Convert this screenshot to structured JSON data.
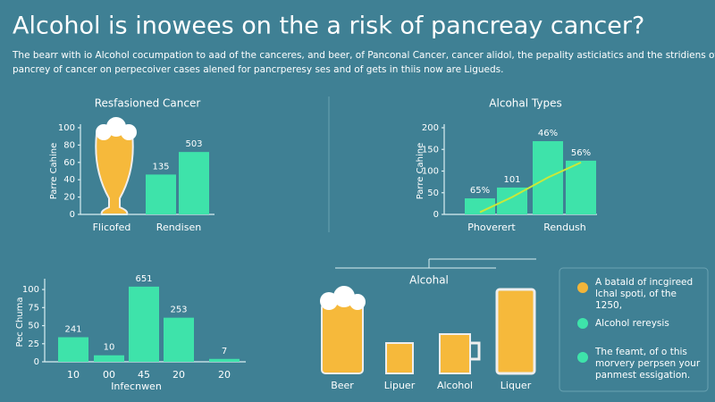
{
  "title": "Alcohol is inowees on the a risk of pancreay cancer?",
  "subtitle": [
    "The bearr with io Alcohol cocumpation to aad of the canceres, and beer, of Panconal Cancer, cancer alidol, the pepality asticiatics and the stridiens of",
    "pancrey of cancer on perpecoiver cases alened for pancrperesy ses and of gets in thiis now are Ligueds."
  ],
  "chart_data": [
    {
      "type": "bar",
      "title": "Resfasioned Cancer",
      "y_label": "Parre Cahine",
      "categories": [
        "Flicofed",
        "Rendisen"
      ],
      "values": [
        46,
        72
      ],
      "bar_labels": [
        "135",
        "503"
      ],
      "color": "#3ee3aa",
      "ylim": [
        0,
        100
      ],
      "yticks": [
        0,
        20,
        40,
        60,
        80,
        100
      ]
    },
    {
      "type": "bar",
      "title": "Alcohal Types",
      "y_label": "Parre Cahine",
      "categories": [
        null,
        "Phoverert",
        null,
        "Rendush"
      ],
      "values": [
        37,
        62,
        169,
        124
      ],
      "bar_labels": [
        "65%",
        "101",
        "46%",
        "56%"
      ],
      "color": "#3ee3aa",
      "line": {
        "color": "#c9e83a",
        "values": [
          5,
          40,
          85,
          120
        ]
      },
      "ylim": [
        0,
        200
      ],
      "yticks": [
        0,
        50,
        100,
        150,
        200
      ]
    },
    {
      "type": "bar",
      "x_label": "Infecnwen",
      "y_label": "Pec Chuma",
      "categories": [
        "10",
        "00",
        "45",
        "20",
        "20"
      ],
      "values": [
        34,
        9,
        104,
        61,
        4
      ],
      "bar_labels": [
        "241",
        "10",
        "651",
        "253",
        "7"
      ],
      "color": "#3ee3aa",
      "ylim": [
        0,
        110
      ],
      "yticks": [
        0,
        25,
        50,
        75,
        100
      ]
    }
  ],
  "drinks": {
    "title": "Alcohal",
    "labels": [
      "Beer",
      "Lipuer",
      "Alcohol",
      "Liquer"
    ]
  },
  "notes": [
    {
      "text": [
        "A batald of incgireed",
        "lchal spoti, of the",
        "1250,"
      ],
      "color": "#f2b53a"
    },
    {
      "text": [
        "Alcohol rereysis"
      ],
      "color": "#3ee3aa"
    },
    {
      "text": [
        "The feamt, of o this",
        "morvery perpsen your",
        "panmest essigation."
      ],
      "color": "#3ee3aa"
    }
  ]
}
